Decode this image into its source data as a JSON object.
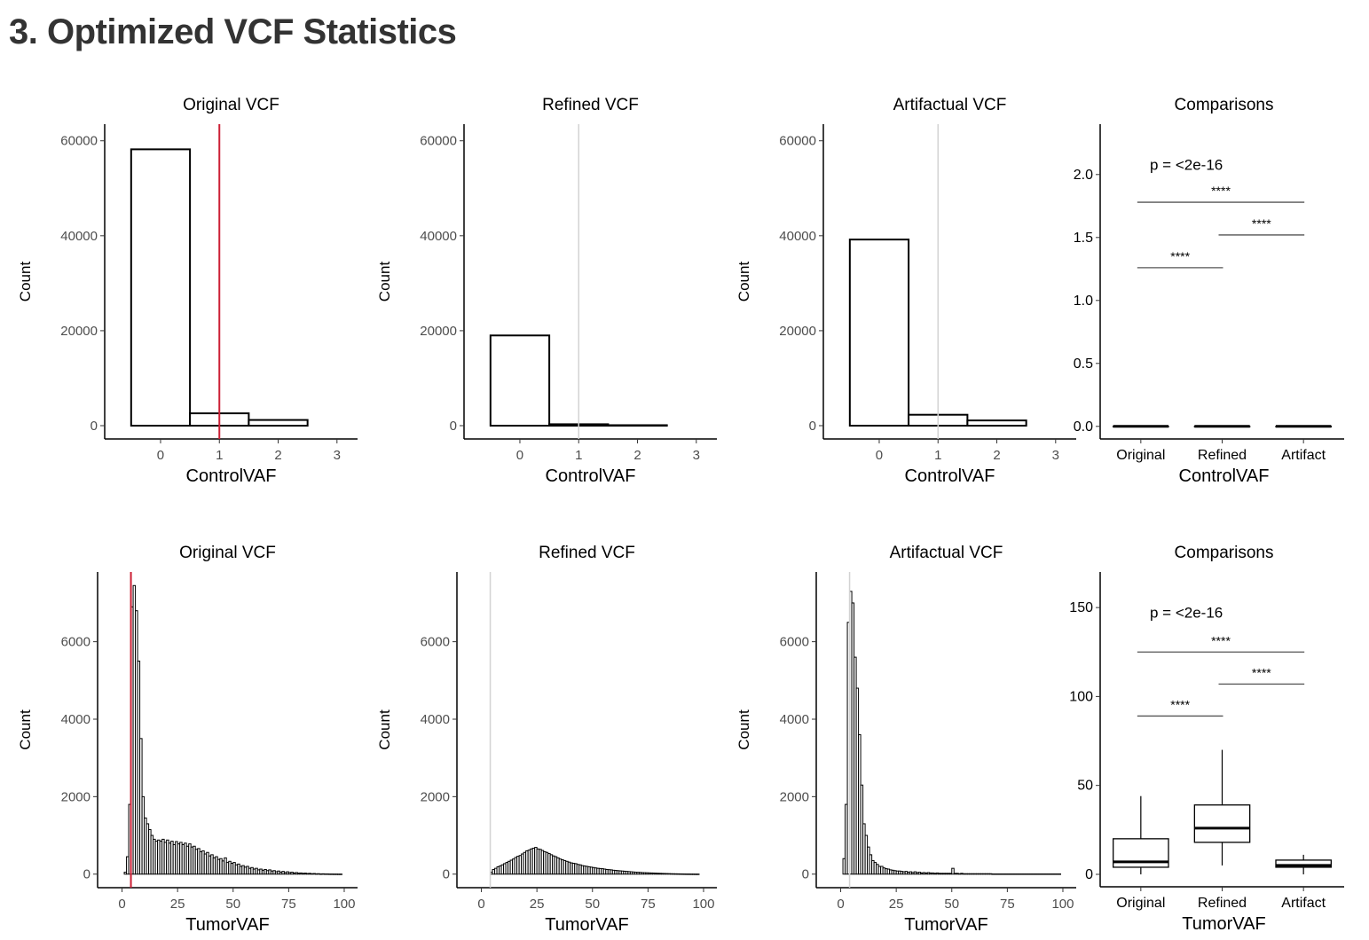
{
  "page": {
    "title": "3. Optimized VCF Statistics"
  },
  "colors": {
    "threshold_red": "#cc1f35",
    "threshold_grey": "#d3d3d3",
    "bar_fill": "#ffffff",
    "bar_stroke": "#000000",
    "bracket": "#555555"
  },
  "chart_data": [
    {
      "type": "bar",
      "id": "control-original",
      "title": "Original VCF",
      "xlabel": "ControlVAF",
      "ylabel": "Count",
      "xlim": [
        -0.95,
        3.35
      ],
      "ylim": [
        -2800,
        63500
      ],
      "xticks": [
        0,
        1,
        2,
        3
      ],
      "yticks": [
        0,
        20000,
        40000,
        60000
      ],
      "binwidth": 1,
      "bin_centers": [
        0,
        1,
        2
      ],
      "values": [
        58200,
        2600,
        1200
      ],
      "threshold": 1,
      "threshold_color": "red"
    },
    {
      "type": "bar",
      "id": "control-refined",
      "title": "Refined VCF",
      "xlabel": "ControlVAF",
      "ylabel": "Count",
      "xlim": [
        -0.95,
        3.35
      ],
      "ylim": [
        -2800,
        63500
      ],
      "xticks": [
        0,
        1,
        2,
        3
      ],
      "yticks": [
        0,
        20000,
        40000,
        60000
      ],
      "binwidth": 1,
      "bin_centers": [
        0,
        1,
        2
      ],
      "values": [
        19000,
        300,
        100
      ],
      "threshold": 1,
      "threshold_color": "grey"
    },
    {
      "type": "bar",
      "id": "control-artifactual",
      "title": "Artifactual VCF",
      "xlabel": "ControlVAF",
      "ylabel": "Count",
      "xlim": [
        -0.95,
        3.35
      ],
      "ylim": [
        -2800,
        63500
      ],
      "xticks": [
        0,
        1,
        2,
        3
      ],
      "yticks": [
        0,
        20000,
        40000,
        60000
      ],
      "binwidth": 1,
      "bin_centers": [
        0,
        1,
        2
      ],
      "values": [
        39200,
        2300,
        1100
      ],
      "threshold": 1,
      "threshold_color": "grey"
    },
    {
      "type": "box",
      "id": "control-comparisons",
      "title": "Comparisons",
      "xlabel": "ControlVAF",
      "categories": [
        "Original",
        "Refined",
        "Artifact"
      ],
      "ylim": [
        -0.1,
        2.4
      ],
      "yticks": [
        "0.0",
        "0.5",
        "1.0",
        "1.5",
        "2.0"
      ],
      "boxes": [
        {
          "min": 0,
          "q1": 0,
          "median": 0,
          "q3": 0,
          "max": 0
        },
        {
          "min": 0,
          "q1": 0,
          "median": 0,
          "q3": 0,
          "max": 0
        },
        {
          "min": 0,
          "q1": 0,
          "median": 0,
          "q3": 0,
          "max": 0
        }
      ],
      "p_label": "p = <2e-16",
      "brackets": [
        {
          "from": 0,
          "to": 1,
          "y": 1.26,
          "label": "****"
        },
        {
          "from": 1,
          "to": 2,
          "y": 1.52,
          "label": "****"
        },
        {
          "from": 0,
          "to": 2,
          "y": 1.78,
          "label": "****"
        }
      ]
    },
    {
      "type": "bar",
      "id": "tumor-original",
      "title": "Original VCF",
      "xlabel": "TumorVAF",
      "ylabel": "Count",
      "xlim": [
        -11,
        106
      ],
      "ylim": [
        -350,
        7800
      ],
      "xticks": [
        0,
        25,
        50,
        75,
        100
      ],
      "yticks": [
        0,
        2000,
        4000,
        6000
      ],
      "binwidth": 1,
      "values": [
        0,
        50,
        450,
        1800,
        6900,
        7450,
        6800,
        5500,
        3500,
        2000,
        1450,
        1300,
        1150,
        1000,
        900,
        850,
        880,
        850,
        900,
        820,
        880,
        800,
        850,
        760,
        840,
        780,
        820,
        760,
        800,
        720,
        780,
        700,
        720,
        640,
        660,
        580,
        600,
        520,
        560,
        470,
        500,
        420,
        450,
        380,
        400,
        340,
        420,
        300,
        330,
        280,
        300,
        240,
        260,
        200,
        220,
        180,
        200,
        150,
        170,
        130,
        150,
        110,
        130,
        100,
        120,
        90,
        110,
        80,
        90,
        60,
        80,
        50,
        70,
        40,
        60,
        40,
        50,
        30,
        40,
        25,
        30,
        20,
        25,
        15,
        20,
        10,
        15,
        8,
        10,
        5,
        8,
        5,
        5,
        3,
        3,
        2,
        2,
        1,
        1,
        0
      ],
      "threshold": 4,
      "threshold_color": "red"
    },
    {
      "type": "bar",
      "id": "tumor-refined",
      "title": "Refined VCF",
      "xlabel": "TumorVAF",
      "ylabel": "Count",
      "xlim": [
        -11,
        106
      ],
      "ylim": [
        -350,
        7800
      ],
      "xticks": [
        0,
        25,
        50,
        75,
        100
      ],
      "yticks": [
        0,
        2000,
        4000,
        6000
      ],
      "binwidth": 1,
      "values": [
        0,
        0,
        0,
        0,
        50,
        120,
        150,
        190,
        210,
        240,
        270,
        300,
        330,
        360,
        390,
        430,
        460,
        480,
        520,
        560,
        600,
        620,
        650,
        670,
        690,
        650,
        640,
        610,
        580,
        560,
        530,
        500,
        470,
        450,
        420,
        390,
        370,
        350,
        330,
        310,
        290,
        280,
        270,
        250,
        240,
        220,
        210,
        200,
        190,
        180,
        170,
        160,
        150,
        145,
        140,
        130,
        120,
        115,
        110,
        100,
        95,
        90,
        85,
        80,
        75,
        70,
        65,
        60,
        55,
        50,
        48,
        45,
        40,
        38,
        35,
        32,
        30,
        28,
        25,
        22,
        20,
        18,
        16,
        14,
        12,
        10,
        9,
        8,
        7,
        6,
        5,
        4,
        3,
        3,
        2,
        2,
        1,
        1,
        0,
        0
      ],
      "threshold": 4,
      "threshold_color": "grey"
    },
    {
      "type": "bar",
      "id": "tumor-artifactual",
      "title": "Artifactual VCF",
      "xlabel": "TumorVAF",
      "ylabel": "Count",
      "xlim": [
        -11,
        106
      ],
      "ylim": [
        -350,
        7800
      ],
      "xticks": [
        0,
        25,
        50,
        75,
        100
      ],
      "yticks": [
        0,
        2000,
        4000,
        6000
      ],
      "binwidth": 1,
      "values": [
        0,
        400,
        1800,
        6500,
        7300,
        7000,
        5600,
        4800,
        3600,
        2300,
        1300,
        1000,
        700,
        500,
        350,
        300,
        250,
        200,
        200,
        160,
        140,
        130,
        110,
        100,
        90,
        80,
        80,
        70,
        60,
        70,
        50,
        60,
        40,
        60,
        40,
        50,
        30,
        40,
        30,
        40,
        30,
        30,
        20,
        30,
        20,
        20,
        20,
        20,
        20,
        20,
        150,
        20,
        20,
        10,
        20,
        10,
        10,
        10,
        10,
        10,
        10,
        10,
        10,
        10,
        10,
        10,
        10,
        10,
        5,
        5,
        5,
        5,
        5,
        5,
        5,
        5,
        5,
        5,
        5,
        5,
        5,
        5,
        5,
        5,
        5,
        5,
        5,
        5,
        5,
        5,
        5,
        5,
        5,
        5,
        5,
        5,
        5,
        5,
        5,
        0
      ],
      "threshold": 4,
      "threshold_color": "grey"
    },
    {
      "type": "box",
      "id": "tumor-comparisons",
      "title": "Comparisons",
      "xlabel": "TumorVAF",
      "categories": [
        "Original",
        "Refined",
        "Artifact"
      ],
      "ylim": [
        -7,
        170
      ],
      "yticks": [
        "0",
        "50",
        "100",
        "150"
      ],
      "boxes": [
        {
          "min": 0,
          "q1": 4,
          "median": 7,
          "q3": 20,
          "max": 44
        },
        {
          "min": 5,
          "q1": 18,
          "median": 26,
          "q3": 39,
          "max": 70
        },
        {
          "min": 0,
          "q1": 4,
          "median": 5,
          "q3": 8,
          "max": 11
        }
      ],
      "p_label": "p = <2e-16",
      "brackets": [
        {
          "from": 0,
          "to": 1,
          "y": 89,
          "label": "****"
        },
        {
          "from": 1,
          "to": 2,
          "y": 107,
          "label": "****"
        },
        {
          "from": 0,
          "to": 2,
          "y": 125,
          "label": "****"
        }
      ]
    }
  ]
}
